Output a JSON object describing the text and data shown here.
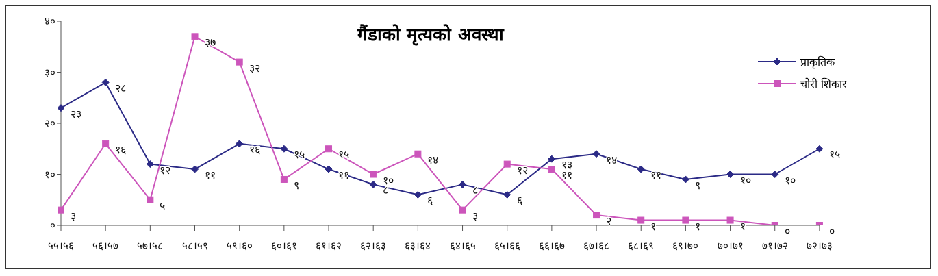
{
  "chart_data": {
    "type": "line",
    "title": "गैंडाको मृत्यको अवस्था",
    "categories": [
      "५५।५६",
      "५६।५७",
      "५७।५८",
      "५८।५९",
      "५९।६०",
      "६०।६१",
      "६१।६२",
      "६२।६३",
      "६३।६४",
      "६४।६५",
      "६५।६६",
      "६६।६७",
      "६७।६८",
      "६८।६९",
      "६९।७०",
      "७०।७१",
      "७१।७२",
      "७२।७३"
    ],
    "series": [
      {
        "name": "प्राकृतिक",
        "color": "#2b2a86",
        "marker": "diamond",
        "values": [
          23,
          28,
          12,
          11,
          16,
          15,
          11,
          8,
          6,
          8,
          6,
          13,
          14,
          11,
          9,
          10,
          10,
          15
        ],
        "value_labels": [
          "२३",
          "२८",
          "१२",
          "११",
          "१६",
          "१५",
          "११",
          "८",
          "६",
          "८",
          "६",
          "१३",
          "१४",
          "११",
          "९",
          "१०",
          "१०",
          "१५"
        ]
      },
      {
        "name": "चोरी शिकार",
        "color": "#cc55bb",
        "marker": "square",
        "values": [
          3,
          16,
          5,
          37,
          32,
          9,
          15,
          10,
          14,
          3,
          12,
          11,
          2,
          1,
          1,
          1,
          0,
          0
        ],
        "value_labels": [
          "३",
          "१६",
          "५",
          "३७",
          "३२",
          "९",
          "१५",
          "१०",
          "१४",
          "३",
          "१२",
          "११",
          "२",
          "१",
          "१",
          "१",
          "०",
          "०"
        ]
      }
    ],
    "ylim": [
      0,
      40
    ],
    "yticks": [
      {
        "value": 0,
        "label": "०"
      },
      {
        "value": 10,
        "label": "१०"
      },
      {
        "value": 20,
        "label": "२०"
      },
      {
        "value": 30,
        "label": "३०"
      },
      {
        "value": 40,
        "label": "४०"
      }
    ],
    "grid": false,
    "legend": "top right"
  }
}
